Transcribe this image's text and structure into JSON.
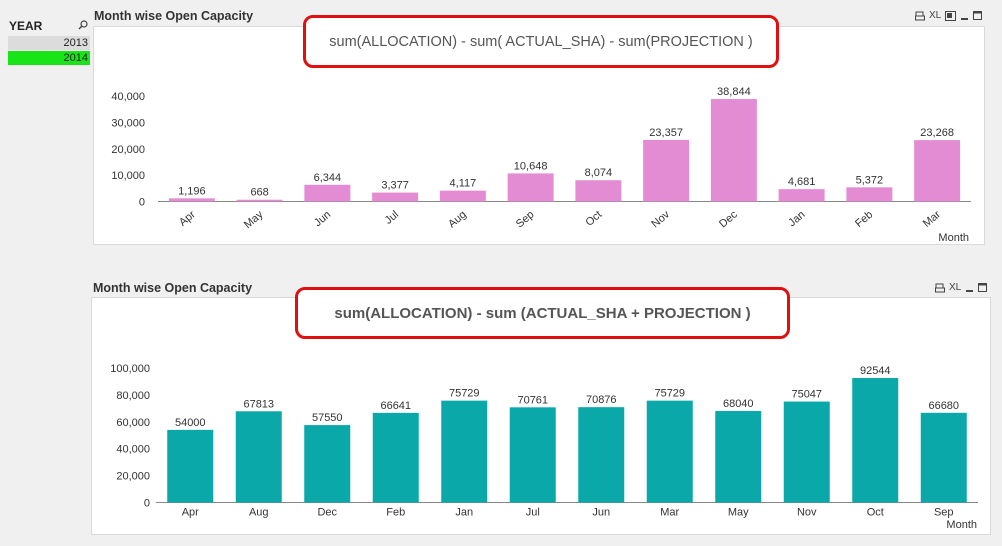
{
  "year_listbox": {
    "title": "YEAR",
    "items": [
      {
        "label": "2013",
        "selected": false
      },
      {
        "label": "2014",
        "selected": true
      }
    ],
    "search_icon": "search-icon",
    "colors": {
      "selected": "#18e418",
      "possible": "#dcdcdc"
    }
  },
  "top_chart": {
    "caption": "Month wise Open Capacity",
    "toolbar": {
      "xl_label": "XL"
    },
    "expression": "sum(ALLOCATION) - sum( ACTUAL_SHA) - sum(PROJECTION )"
  },
  "bottom_chart": {
    "caption": "Month wise Open Capacity",
    "toolbar": {
      "xl_label": "XL"
    },
    "expression": "sum(ALLOCATION) - sum (ACTUAL_SHA + PROJECTION )"
  },
  "chart_data": [
    {
      "type": "bar",
      "categories": [
        "Apr",
        "May",
        "Jun",
        "Jul",
        "Aug",
        "Sep",
        "Oct",
        "Nov",
        "Dec",
        "Jan",
        "Feb",
        "Mar"
      ],
      "values": [
        1196,
        668,
        6344,
        3377,
        4117,
        10648,
        8074,
        23357,
        38844,
        4681,
        5372,
        23268
      ],
      "value_labels": [
        "1,196",
        "668",
        "6,344",
        "3,377",
        "4,117",
        "10,648",
        "8,074",
        "23,357",
        "38,844",
        "4,681",
        "5,372",
        "23,268"
      ],
      "xlabel": "Month",
      "ylabel": "",
      "ylim": [
        0,
        40000
      ],
      "yticks": [
        0,
        10000,
        20000,
        30000,
        40000
      ],
      "ytick_labels": [
        "0",
        "10,000",
        "20,000",
        "30,000",
        "40,000"
      ],
      "color": "#e38cd3",
      "x_labels_rotated": true,
      "grid": false
    },
    {
      "type": "bar",
      "categories": [
        "Apr",
        "Aug",
        "Dec",
        "Feb",
        "Jan",
        "Jul",
        "Jun",
        "Mar",
        "May",
        "Nov",
        "Oct",
        "Sep"
      ],
      "values": [
        54000,
        67813,
        57550,
        66641,
        75729,
        70761,
        70876,
        75729,
        68040,
        75047,
        92544,
        66680
      ],
      "value_labels": [
        "54000",
        "67813",
        "57550",
        "66641",
        "75729",
        "70761",
        "70876",
        "75729",
        "68040",
        "75047",
        "92544",
        "66680"
      ],
      "xlabel": "Month",
      "ylabel": "",
      "ylim": [
        0,
        100000
      ],
      "yticks": [
        0,
        20000,
        40000,
        60000,
        80000,
        100000
      ],
      "ytick_labels": [
        "0",
        "20,000",
        "40,000",
        "60,000",
        "80,000",
        "100,000"
      ],
      "color": "#0aa8a8",
      "x_labels_rotated": false,
      "grid": false
    }
  ]
}
